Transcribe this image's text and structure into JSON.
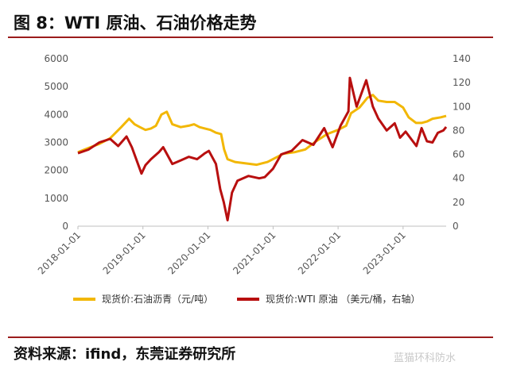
{
  "figure": {
    "title": "图 8：WTI 原油、石油价格走势",
    "source": "资料来源：ifind，东莞证券研究所",
    "watermark": "蓝猫环科防水"
  },
  "chart_data": {
    "type": "line",
    "title": "",
    "xlabel": "",
    "ylabel": "",
    "y2label": "",
    "x_tick_labels": [
      "2018-01-01",
      "2019-01-01",
      "2020-01-01",
      "2021-01-01",
      "2022-01-01",
      "2023-01-01"
    ],
    "x_range": [
      "2018-01-01",
      "2023-08-31"
    ],
    "ylim": [
      0,
      6000
    ],
    "y_ticks": [
      0,
      1000,
      2000,
      3000,
      4000,
      5000,
      6000
    ],
    "y2lim": [
      0,
      140
    ],
    "y2_ticks": [
      0,
      20,
      40,
      60,
      80,
      100,
      120,
      140
    ],
    "grid": false,
    "legend_position": "bottom",
    "series": [
      {
        "name": "现货价:石油沥青（元/吨）",
        "axis": "left",
        "color": "#f2b705",
        "points": [
          [
            "2018-01-01",
            2650
          ],
          [
            "2018-03-01",
            2800
          ],
          [
            "2018-05-01",
            2950
          ],
          [
            "2018-07-01",
            3150
          ],
          [
            "2018-09-01",
            3550
          ],
          [
            "2018-10-15",
            3850
          ],
          [
            "2018-11-15",
            3650
          ],
          [
            "2018-12-15",
            3550
          ],
          [
            "2019-01-15",
            3450
          ],
          [
            "2019-02-15",
            3500
          ],
          [
            "2019-03-15",
            3600
          ],
          [
            "2019-04-15",
            4000
          ],
          [
            "2019-05-15",
            4100
          ],
          [
            "2019-06-15",
            3650
          ],
          [
            "2019-08-01",
            3550
          ],
          [
            "2019-09-15",
            3600
          ],
          [
            "2019-10-15",
            3650
          ],
          [
            "2019-11-15",
            3550
          ],
          [
            "2019-12-15",
            3500
          ],
          [
            "2020-01-15",
            3450
          ],
          [
            "2020-02-15",
            3350
          ],
          [
            "2020-03-15",
            3300
          ],
          [
            "2020-04-01",
            2750
          ],
          [
            "2020-04-20",
            2400
          ],
          [
            "2020-06-01",
            2300
          ],
          [
            "2020-08-01",
            2250
          ],
          [
            "2020-10-01",
            2200
          ],
          [
            "2020-12-01",
            2300
          ],
          [
            "2021-01-15",
            2450
          ],
          [
            "2021-03-01",
            2600
          ],
          [
            "2021-05-01",
            2650
          ],
          [
            "2021-07-01",
            2750
          ],
          [
            "2021-09-01",
            3050
          ],
          [
            "2021-11-01",
            3300
          ],
          [
            "2022-01-01",
            3450
          ],
          [
            "2022-02-15",
            3600
          ],
          [
            "2022-03-15",
            4050
          ],
          [
            "2022-05-01",
            4250
          ],
          [
            "2022-06-15",
            4600
          ],
          [
            "2022-07-15",
            4700
          ],
          [
            "2022-08-15",
            4500
          ],
          [
            "2022-10-01",
            4450
          ],
          [
            "2022-11-15",
            4450
          ],
          [
            "2023-01-01",
            4250
          ],
          [
            "2023-02-01",
            3900
          ],
          [
            "2023-03-15",
            3700
          ],
          [
            "2023-04-15",
            3700
          ],
          [
            "2023-05-15",
            3750
          ],
          [
            "2023-06-15",
            3850
          ],
          [
            "2023-08-01",
            3900
          ],
          [
            "2023-08-31",
            3950
          ]
        ]
      },
      {
        "name": "现货价:WTI 原油 （美元/桶，右轴）",
        "axis": "right",
        "color": "#b80f0f",
        "points": [
          [
            "2018-01-01",
            61
          ],
          [
            "2018-03-01",
            64
          ],
          [
            "2018-05-01",
            70
          ],
          [
            "2018-07-01",
            73
          ],
          [
            "2018-08-15",
            67
          ],
          [
            "2018-10-01",
            75
          ],
          [
            "2018-10-31",
            66
          ],
          [
            "2018-12-24",
            44
          ],
          [
            "2019-01-15",
            51
          ],
          [
            "2019-02-15",
            56
          ],
          [
            "2019-04-01",
            62
          ],
          [
            "2019-04-25",
            66
          ],
          [
            "2019-06-15",
            52
          ],
          [
            "2019-08-01",
            55
          ],
          [
            "2019-09-15",
            58
          ],
          [
            "2019-11-01",
            56
          ],
          [
            "2019-12-15",
            61
          ],
          [
            "2020-01-06",
            63
          ],
          [
            "2020-02-15",
            52
          ],
          [
            "2020-03-10",
            31
          ],
          [
            "2020-03-30",
            20
          ],
          [
            "2020-04-20",
            5
          ],
          [
            "2020-05-15",
            28
          ],
          [
            "2020-06-15",
            38
          ],
          [
            "2020-08-15",
            42
          ],
          [
            "2020-10-15",
            40
          ],
          [
            "2020-11-15",
            41
          ],
          [
            "2020-12-31",
            48
          ],
          [
            "2021-02-15",
            60
          ],
          [
            "2021-04-15",
            63
          ],
          [
            "2021-06-15",
            72
          ],
          [
            "2021-08-15",
            68
          ],
          [
            "2021-10-15",
            82
          ],
          [
            "2021-12-01",
            66
          ],
          [
            "2022-01-15",
            84
          ],
          [
            "2022-02-28",
            96
          ],
          [
            "2022-03-08",
            124
          ],
          [
            "2022-04-15",
            100
          ],
          [
            "2022-06-08",
            122
          ],
          [
            "2022-07-15",
            100
          ],
          [
            "2022-08-15",
            90
          ],
          [
            "2022-10-01",
            80
          ],
          [
            "2022-11-15",
            86
          ],
          [
            "2022-12-15",
            74
          ],
          [
            "2023-01-15",
            79
          ],
          [
            "2023-03-17",
            67
          ],
          [
            "2023-04-15",
            82
          ],
          [
            "2023-05-15",
            71
          ],
          [
            "2023-06-15",
            70
          ],
          [
            "2023-07-15",
            78
          ],
          [
            "2023-08-15",
            80
          ],
          [
            "2023-08-31",
            83
          ]
        ]
      }
    ]
  }
}
